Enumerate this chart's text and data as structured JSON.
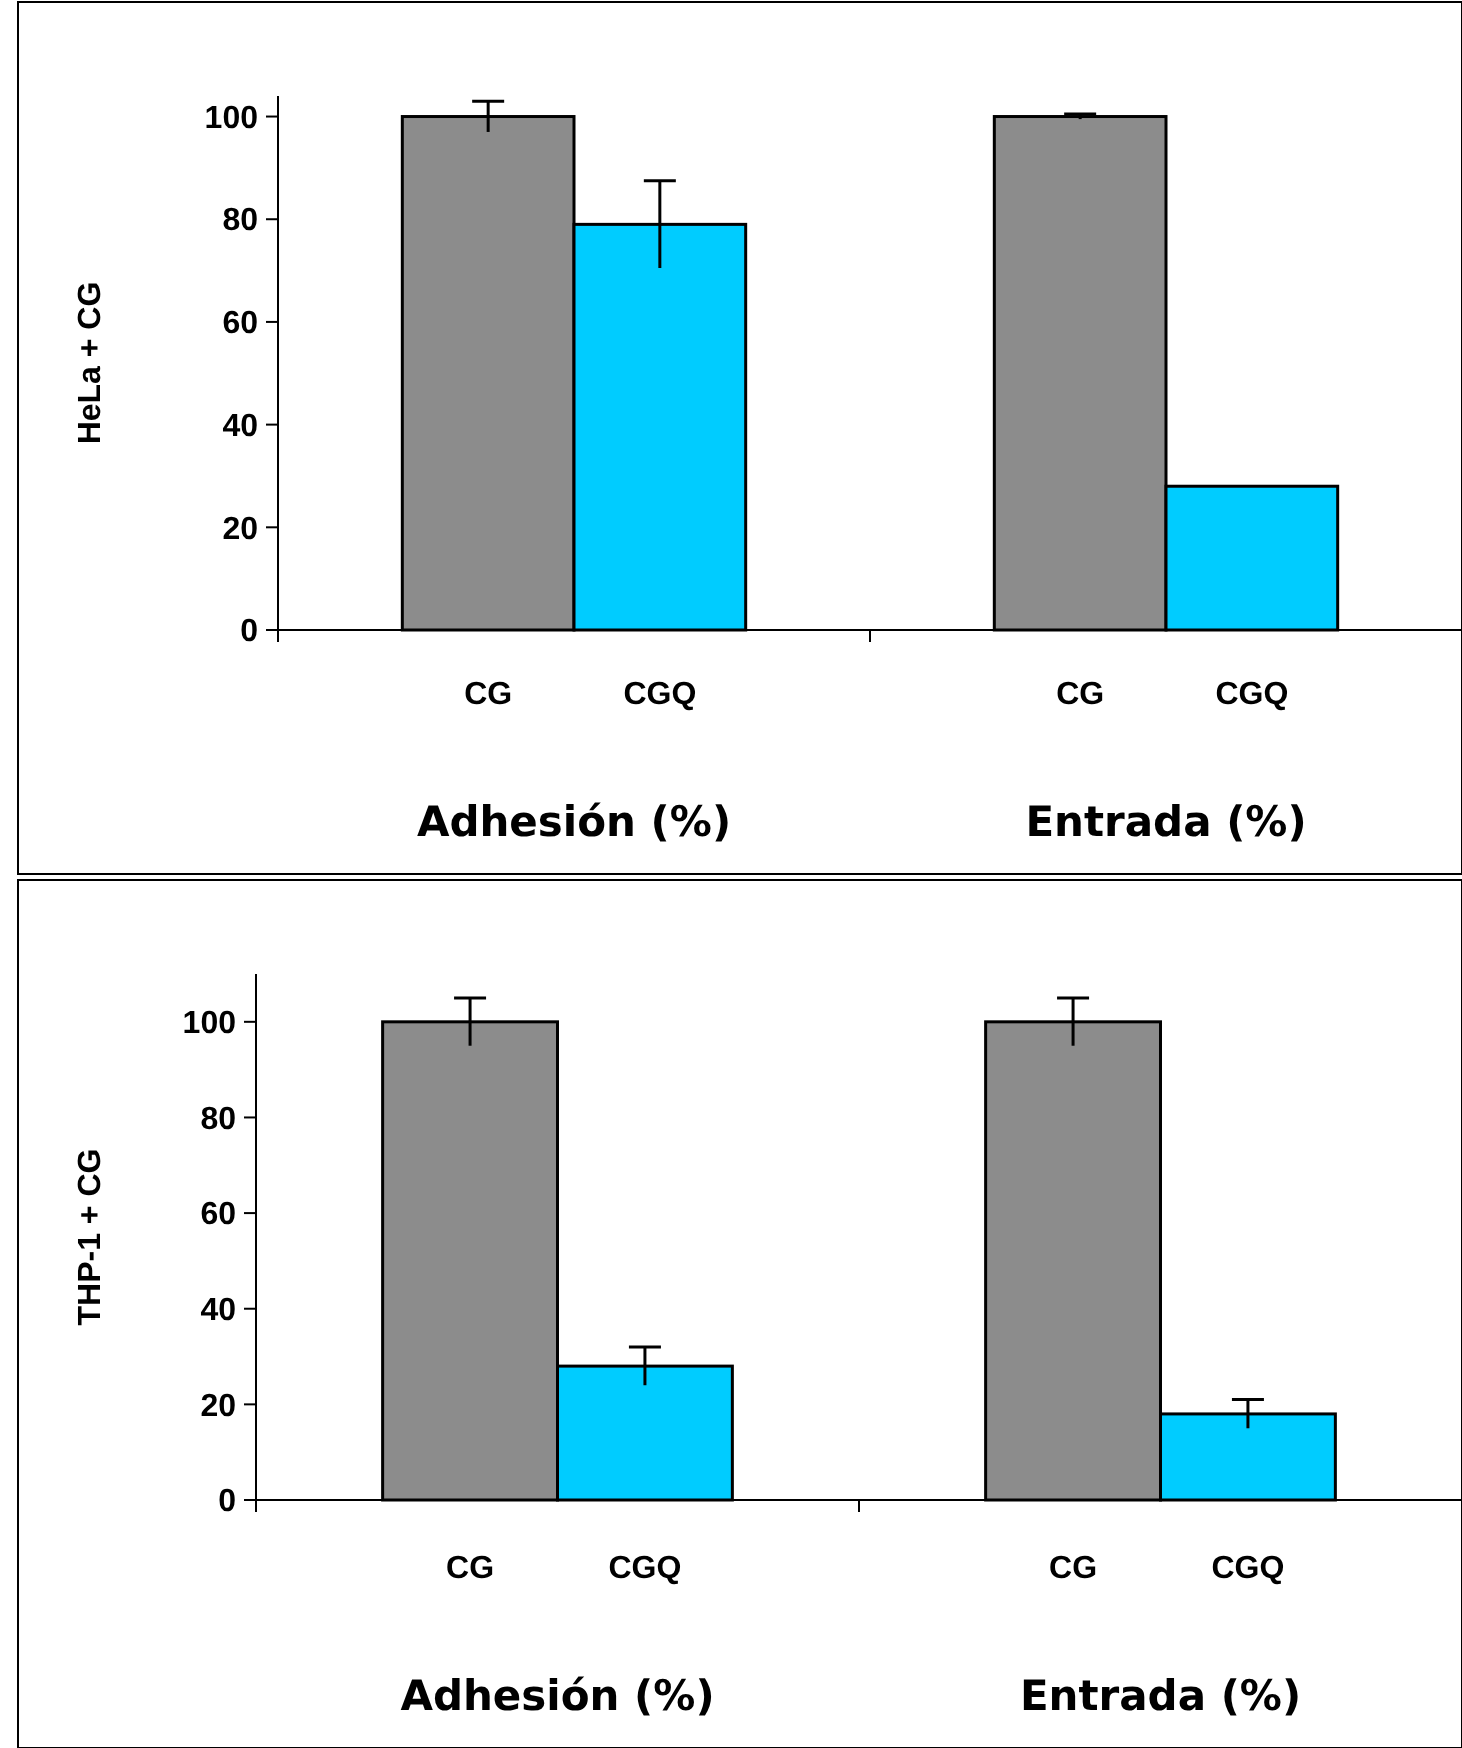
{
  "chart_data": [
    {
      "type": "bar",
      "ylabel": "HeLa + CG",
      "categories": [
        "Adhesión (%)",
        "Entrada (%)"
      ],
      "ylim": [
        0,
        104
      ],
      "yticks": [
        0,
        20,
        40,
        60,
        80,
        100
      ],
      "grid": false,
      "series": [
        {
          "name": "CG",
          "color": "#8c8c8c",
          "values": [
            100,
            100
          ],
          "errors": [
            3,
            0.5
          ]
        },
        {
          "name": "CGQ",
          "color": "#00ccff",
          "values": [
            79,
            28
          ],
          "errors": [
            8.5,
            null
          ]
        }
      ]
    },
    {
      "type": "bar",
      "ylabel": "THP-1 + CG",
      "categories": [
        "Adhesión (%)",
        "Entrada (%)"
      ],
      "ylim": [
        0,
        110
      ],
      "yticks": [
        0,
        20,
        40,
        60,
        80,
        100
      ],
      "grid": false,
      "series": [
        {
          "name": "CG",
          "color": "#8c8c8c",
          "values": [
            100,
            100
          ],
          "errors": [
            5,
            5
          ]
        },
        {
          "name": "CGQ",
          "color": "#00ccff",
          "values": [
            28,
            18
          ],
          "errors": [
            4,
            3
          ]
        }
      ]
    }
  ]
}
